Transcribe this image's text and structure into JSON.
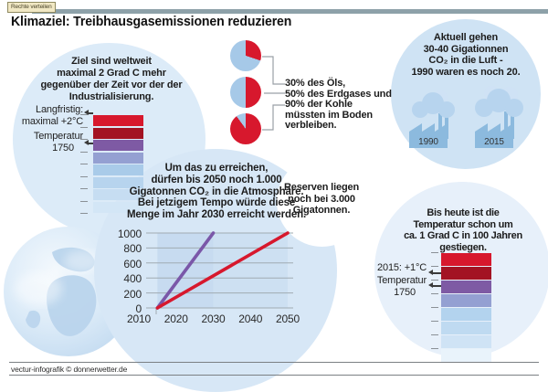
{
  "header": {
    "badge": "Rechte verteilen",
    "title": "Klimaziel: Treibhausgasemissionen reduzieren"
  },
  "goal_bubble": {
    "lines": [
      "Ziel sind weltweit",
      "maximal 2 Grad C mehr",
      "gegenüber der Zeit vor der der",
      "Industrialisierung."
    ],
    "scale_labels": {
      "top1": "Langfristig:",
      "top2": "maximal +2°C",
      "bottom1": "Temperatur",
      "bottom2": "1750"
    }
  },
  "pie_section": {
    "lines": [
      "30% des Öls,",
      "50% des Erdgases und",
      "90% der Kohle",
      "müssten im Boden",
      "verbleiben."
    ]
  },
  "current_bubble": {
    "lines": [
      "Aktuell gehen",
      "30-40 Gigationnen",
      "CO₂ in die Luft -",
      "1990 waren es noch 20."
    ],
    "factory_labels": [
      "1990",
      "2015"
    ]
  },
  "budget_bubble": {
    "lines": [
      "Um das zu erreichen,",
      "dürfen bis 2050 noch 1.000",
      "Gigatonnen CO₂ in die Atmosphäre.",
      "Bei jetzigem Tempo würde diese",
      "Menge im Jahr 2030 erreicht werden."
    ]
  },
  "reserve_bubble": {
    "lines": [
      "Reserven liegen",
      "noch bei 3.000",
      "Gigatonnen."
    ]
  },
  "today_bubble": {
    "lines": [
      "Bis heute ist die",
      "Temperatur schon um",
      "ca. 1 Grad C in 100 Jahren",
      "gestiegen."
    ],
    "scale_labels": {
      "top": "2015: +1°C",
      "bottom1": "Temperatur",
      "bottom2": "1750"
    }
  },
  "footer": {
    "credit": "vectur-infografik © donnerwetter.de"
  },
  "colors": {
    "accent_red": "#d7182d",
    "dark_red": "#a31323",
    "purple": "#7e5aa4",
    "periwinkle": "#94a0d2",
    "pie_blue": "#a6c9e8",
    "bubble_blue": "#d7e7f6",
    "topbar_gray": "#8da1a9"
  },
  "chart_data": [
    {
      "type": "bar",
      "id": "goal-temperature-stripes",
      "title": "Temperaturskala: Ziel maximal +2°C gegenüber 1750",
      "stripe_colors": [
        "#d7182d",
        "#a31323",
        "#7e5aa4",
        "#94a0d2",
        "#a9cbe9",
        "#b7d4ee",
        "#c6ddf2",
        "#d3e6f6"
      ],
      "annotations": [
        {
          "label": "Langfristig: maximal +2°C",
          "stripe_index": 0
        },
        {
          "label": "Temperatur 1750",
          "stripe_index": 2
        }
      ]
    },
    {
      "type": "pie",
      "id": "fossil-reserves-pies",
      "caption": "30% des Öls, 50% des Erdgases und 90% der Kohle müssten im Boden verbleiben.",
      "series": [
        {
          "label": "Öl",
          "red_pct": 30
        },
        {
          "label": "Erdgas",
          "red_pct": 50
        },
        {
          "label": "Kohle",
          "red_pct": 90
        }
      ],
      "colors": {
        "remain_in_ground": "#d7182d",
        "usable": "#a6c9e8"
      }
    },
    {
      "type": "line",
      "id": "co2-budget",
      "xlim": [
        2010,
        2050
      ],
      "ylim": [
        0,
        1000
      ],
      "xticks": [
        2010,
        2020,
        2030,
        2040,
        2050
      ],
      "yticks": [
        0,
        200,
        400,
        600,
        800,
        1000
      ],
      "series": [
        {
          "name": "bei jetzigem Tempo (1.000 Gt bis 2030)",
          "color": "#7a57a8",
          "points": [
            [
              2015,
              0
            ],
            [
              2030,
              1000
            ]
          ]
        },
        {
          "name": "Ziel: 1.000 Gt bis 2050",
          "color": "#d7182d",
          "points": [
            [
              2015,
              0
            ],
            [
              2050,
              1000
            ]
          ]
        }
      ]
    },
    {
      "type": "bar",
      "id": "today-temperature-stripes",
      "title": "Temperatur heute: ca. +1 Grad C in 100 Jahren",
      "stripe_colors": [
        "#d7182d",
        "#a31323",
        "#7e5aa4",
        "#94a0d2",
        "#b3d3ee",
        "#bfdaf1",
        "#cfe3f5",
        "#e9f3fb"
      ],
      "annotations": [
        {
          "label": "2015: +1°C",
          "stripe_index": 1
        },
        {
          "label": "Temperatur 1750",
          "stripe_index": 2
        }
      ]
    }
  ]
}
